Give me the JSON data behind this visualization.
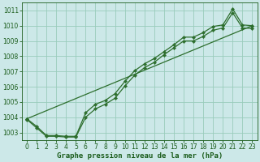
{
  "xlabel": "Graphe pression niveau de la mer (hPa)",
  "xlim": [
    -0.5,
    23.5
  ],
  "ylim": [
    1002.5,
    1011.5
  ],
  "yticks": [
    1003,
    1004,
    1005,
    1006,
    1007,
    1008,
    1009,
    1010,
    1011
  ],
  "xticks": [
    0,
    1,
    2,
    3,
    4,
    5,
    6,
    7,
    8,
    9,
    10,
    11,
    12,
    13,
    14,
    15,
    16,
    17,
    18,
    19,
    20,
    21,
    22,
    23
  ],
  "background_color": "#cce8e8",
  "grid_color": "#99ccbb",
  "line_color": "#2d6e2d",
  "marker": "D",
  "marker_size": 2.2,
  "line_width": 0.9,
  "series": [
    {
      "x": [
        0,
        1,
        2,
        3,
        4,
        5,
        6,
        7,
        8,
        9,
        10,
        11,
        12,
        13,
        14,
        15,
        16,
        17,
        18,
        19,
        20,
        21,
        22,
        23
      ],
      "y": [
        1003.9,
        1003.4,
        1002.8,
        1002.8,
        1002.75,
        1002.75,
        1004.3,
        1004.85,
        1005.1,
        1005.55,
        1006.35,
        1007.05,
        1007.5,
        1007.85,
        1008.3,
        1008.75,
        1009.25,
        1009.25,
        1009.55,
        1009.95,
        1010.05,
        1011.1,
        1010.05,
        1010.0
      ]
    },
    {
      "x": [
        0,
        1,
        2,
        3,
        4,
        5,
        6,
        7,
        8,
        9,
        10,
        11,
        12,
        13,
        14,
        15,
        16,
        17,
        18,
        19,
        20,
        21,
        22,
        23
      ],
      "y": [
        1003.85,
        1003.3,
        1002.75,
        1002.75,
        1002.7,
        1002.7,
        1004.0,
        1004.55,
        1004.85,
        1005.25,
        1006.05,
        1006.75,
        1007.25,
        1007.6,
        1008.1,
        1008.55,
        1009.0,
        1009.0,
        1009.3,
        1009.7,
        1009.85,
        1010.85,
        1009.85,
        1009.82
      ]
    },
    {
      "x": [
        0,
        23
      ],
      "y": [
        1003.9,
        1010.0
      ]
    }
  ],
  "font_color": "#1a5c1a",
  "tick_fontsize": 5.5,
  "label_fontsize": 6.5
}
